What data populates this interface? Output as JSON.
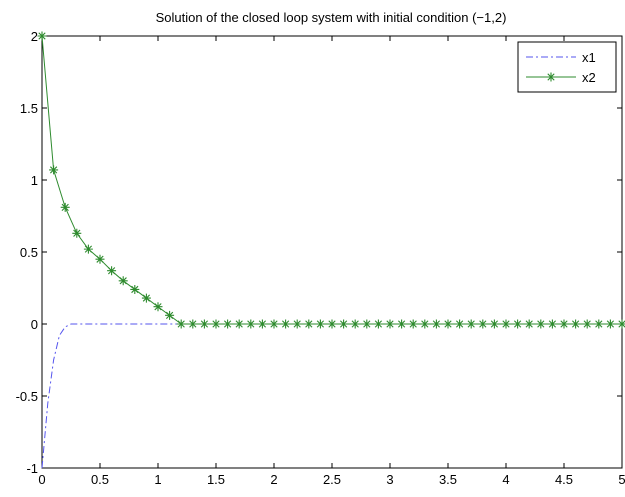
{
  "chart_data": {
    "type": "line",
    "title": "Solution of the closed loop system  with initial condition  (−1,2)",
    "xlabel": "",
    "ylabel": "",
    "xlim": [
      0,
      5
    ],
    "ylim": [
      -1,
      2
    ],
    "x_ticks": [
      "0",
      "0.5",
      "1",
      "1.5",
      "2",
      "2.5",
      "3",
      "3.5",
      "4",
      "4.5",
      "5"
    ],
    "y_ticks": [
      "-1",
      "-0.5",
      "0",
      "0.5",
      "1",
      "1.5",
      "2"
    ],
    "grid": false,
    "legend_position": "top-right",
    "series": [
      {
        "name": "x1",
        "color": "#5555ee",
        "line_style": "dash-dot",
        "marker": "none",
        "x": [
          0,
          0.05,
          0.1,
          0.15,
          0.2,
          0.25,
          0.3,
          0.4,
          0.5,
          1.0,
          1.5,
          2.0,
          2.5,
          3.0,
          3.5,
          4.0,
          4.5,
          5.0
        ],
        "y": [
          -1,
          -0.55,
          -0.25,
          -0.08,
          -0.02,
          0.0,
          0.0,
          0.0,
          0.0,
          0.0,
          0.0,
          0.0,
          0.0,
          0.0,
          0.0,
          0.0,
          0.0,
          0.0
        ]
      },
      {
        "name": "x2",
        "color": "#2e8b2e",
        "line_style": "solid",
        "marker": "star",
        "x": [
          0,
          0.1,
          0.2,
          0.3,
          0.4,
          0.5,
          0.6,
          0.7,
          0.8,
          0.9,
          1.0,
          1.1,
          1.2,
          1.3,
          1.4,
          1.5,
          1.6,
          1.7,
          1.8,
          1.9,
          2.0,
          2.1,
          2.2,
          2.3,
          2.4,
          2.5,
          2.6,
          2.7,
          2.8,
          2.9,
          3.0,
          3.1,
          3.2,
          3.3,
          3.4,
          3.5,
          3.6,
          3.7,
          3.8,
          3.9,
          4.0,
          4.1,
          4.2,
          4.3,
          4.4,
          4.5,
          4.6,
          4.7,
          4.8,
          4.9,
          5.0
        ],
        "y": [
          2.0,
          1.07,
          0.81,
          0.63,
          0.52,
          0.45,
          0.37,
          0.3,
          0.24,
          0.18,
          0.12,
          0.06,
          0,
          0,
          0,
          0,
          0,
          0,
          0,
          0,
          0,
          0,
          0,
          0,
          0,
          0,
          0,
          0,
          0,
          0,
          0,
          0,
          0,
          0,
          0,
          0,
          0,
          0,
          0,
          0,
          0,
          0,
          0,
          0,
          0,
          0,
          0,
          0,
          0,
          0,
          0
        ]
      }
    ]
  }
}
